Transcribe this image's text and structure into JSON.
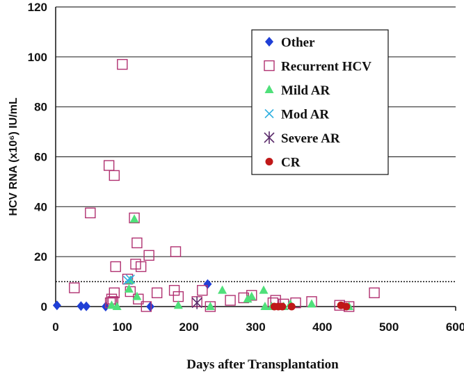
{
  "chart_data": {
    "type": "scatter",
    "xlabel": "Days after Transplantation",
    "ylabel": "HCV RNA (x10⁶) IU/mL",
    "xlim": [
      0,
      600
    ],
    "ylim": [
      0,
      120
    ],
    "x_ticks": [
      0,
      100,
      200,
      300,
      400,
      500,
      600
    ],
    "y_ticks": [
      0,
      20,
      40,
      60,
      80,
      100,
      120
    ],
    "grid": "horizontal",
    "threshold_line": 10,
    "legend_placement": "top-right",
    "series": [
      {
        "name": "Other",
        "marker": "diamond",
        "color": "#1f3fd6",
        "points": [
          [
            2,
            0.5
          ],
          [
            38,
            0.2
          ],
          [
            46,
            0.1
          ],
          [
            75,
            0
          ],
          [
            142,
            0
          ],
          [
            228,
            9
          ]
        ]
      },
      {
        "name": "Recurrent HCV",
        "marker": "open-square",
        "color": "#b03070",
        "points": [
          [
            28,
            7.5
          ],
          [
            52,
            37.5
          ],
          [
            80,
            56.5
          ],
          [
            82,
            1.5
          ],
          [
            84,
            3
          ],
          [
            86,
            2
          ],
          [
            88,
            52.5
          ],
          [
            88,
            5.5
          ],
          [
            90,
            16
          ],
          [
            100,
            97
          ],
          [
            108,
            11
          ],
          [
            112,
            6
          ],
          [
            118,
            35.5
          ],
          [
            120,
            17
          ],
          [
            122,
            25.5
          ],
          [
            124,
            3
          ],
          [
            128,
            16
          ],
          [
            136,
            0
          ],
          [
            140,
            20.5
          ],
          [
            152,
            5.5
          ],
          [
            178,
            6.5
          ],
          [
            180,
            22
          ],
          [
            184,
            4
          ],
          [
            212,
            2
          ],
          [
            220,
            6.5
          ],
          [
            232,
            0
          ],
          [
            262,
            2.5
          ],
          [
            282,
            3.5
          ],
          [
            294,
            4.5
          ],
          [
            326,
            1.5
          ],
          [
            330,
            2.5
          ],
          [
            342,
            1
          ],
          [
            360,
            1.5
          ],
          [
            384,
            2
          ],
          [
            426,
            0.5
          ],
          [
            440,
            0
          ],
          [
            478,
            5.5
          ]
        ]
      },
      {
        "name": "Mild AR",
        "marker": "triangle",
        "color": "#4fe07a",
        "points": [
          [
            84,
            0.5
          ],
          [
            92,
            0
          ],
          [
            110,
            7
          ],
          [
            112,
            10.5
          ],
          [
            118,
            35
          ],
          [
            122,
            4
          ],
          [
            184,
            0.5
          ],
          [
            232,
            0
          ],
          [
            250,
            6.5
          ],
          [
            288,
            3
          ],
          [
            294,
            4
          ],
          [
            312,
            6.5
          ],
          [
            314,
            0
          ],
          [
            324,
            0
          ],
          [
            342,
            0
          ],
          [
            352,
            1
          ],
          [
            384,
            1
          ],
          [
            440,
            0
          ]
        ]
      },
      {
        "name": "Mod AR",
        "marker": "x",
        "color": "#30b0e0",
        "points": [
          [
            108,
            10.5
          ],
          [
            112,
            11
          ]
        ]
      },
      {
        "name": "Severe AR",
        "marker": "asterisk",
        "color": "#5a2a6a",
        "points": [
          [
            212,
            1.5
          ]
        ]
      },
      {
        "name": "CR",
        "marker": "circle",
        "color": "#c01818",
        "points": [
          [
            328,
            0
          ],
          [
            334,
            0
          ],
          [
            340,
            0
          ],
          [
            354,
            0
          ],
          [
            428,
            0.5
          ],
          [
            436,
            0
          ]
        ]
      }
    ]
  }
}
